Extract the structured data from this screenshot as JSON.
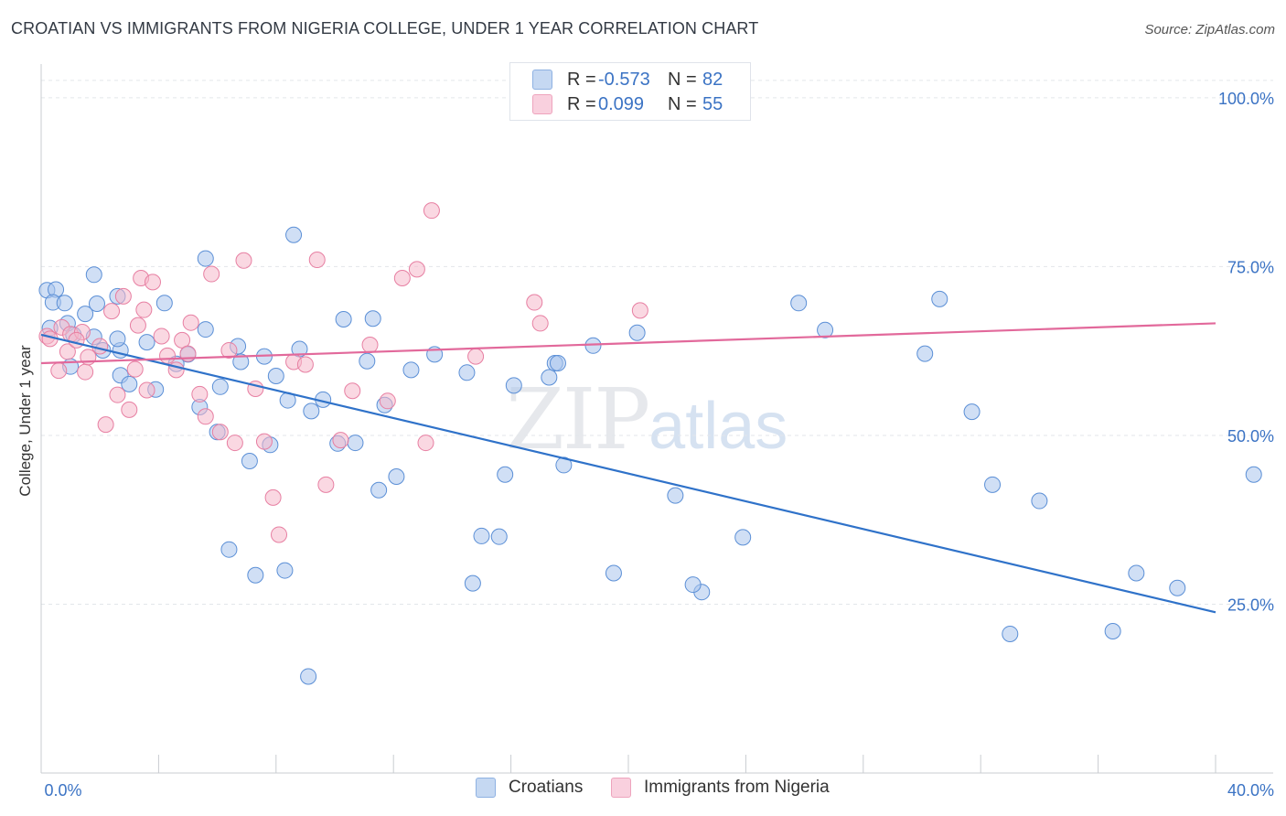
{
  "header": {
    "title": "CROATIAN VS IMMIGRANTS FROM NIGERIA COLLEGE, UNDER 1 YEAR CORRELATION CHART",
    "source": "Source: ZipAtlas.com"
  },
  "watermark": {
    "zip": "ZIP",
    "atlas": "atlas"
  },
  "legend": {
    "r_label": "R =",
    "n_label": "N =",
    "rows": [
      {
        "r": "-0.573",
        "n": "82",
        "color": "#a9c5ec"
      },
      {
        "r": "0.099",
        "n": "55",
        "color": "#f5b8cb"
      }
    ]
  },
  "bottom_legend": [
    "Croatians",
    "Immigrants from Nigeria"
  ],
  "chart_data": {
    "type": "scatter",
    "title": "CROATIAN VS IMMIGRANTS FROM NIGERIA COLLEGE, UNDER 1 YEAR CORRELATION CHART",
    "xlabel": "",
    "ylabel": "College, Under 1 year",
    "xlim": [
      0,
      40
    ],
    "ylim": [
      0,
      105
    ],
    "x_tick_labels": [
      "0.0%",
      "40.0%"
    ],
    "y_ticks": [
      25,
      50,
      75,
      100
    ],
    "y_tick_labels": [
      "25.0%",
      "50.0%",
      "75.0%",
      "100.0%"
    ],
    "grid": true,
    "legend_position": "top-center",
    "series": [
      {
        "name": "Croatians",
        "color": "#a9c5ec",
        "stroke": "#5b8fd6",
        "trend": {
          "x": [
            0,
            40
          ],
          "y": [
            64.9,
            23.8
          ],
          "color": "#2f72c9"
        },
        "points": [
          [
            0.2,
            71.5
          ],
          [
            0.5,
            71.6
          ],
          [
            0.4,
            69.7
          ],
          [
            0.8,
            69.6
          ],
          [
            0.9,
            66.6
          ],
          [
            1.1,
            64.9
          ],
          [
            1.8,
            73.8
          ],
          [
            1.9,
            69.5
          ],
          [
            1.5,
            68.0
          ],
          [
            1.8,
            64.6
          ],
          [
            2.6,
            70.6
          ],
          [
            2.7,
            62.6
          ],
          [
            2.7,
            58.9
          ],
          [
            2.6,
            64.3
          ],
          [
            3.0,
            57.6
          ],
          [
            3.6,
            63.8
          ],
          [
            3.9,
            56.8
          ],
          [
            4.2,
            69.6
          ],
          [
            4.6,
            60.6
          ],
          [
            5.0,
            62.0
          ],
          [
            5.6,
            76.2
          ],
          [
            5.6,
            65.7
          ],
          [
            5.4,
            54.2
          ],
          [
            6.1,
            57.2
          ],
          [
            6.7,
            63.2
          ],
          [
            6.0,
            50.5
          ],
          [
            6.8,
            60.9
          ],
          [
            7.1,
            46.2
          ],
          [
            7.6,
            61.7
          ],
          [
            7.8,
            48.6
          ],
          [
            8.0,
            58.8
          ],
          [
            8.6,
            79.7
          ],
          [
            8.4,
            55.2
          ],
          [
            8.8,
            62.8
          ],
          [
            9.6,
            55.3
          ],
          [
            9.2,
            53.6
          ],
          [
            10.1,
            48.8
          ],
          [
            10.3,
            67.2
          ],
          [
            10.7,
            48.9
          ],
          [
            11.3,
            67.3
          ],
          [
            11.1,
            61.0
          ],
          [
            11.5,
            41.9
          ],
          [
            11.7,
            54.5
          ],
          [
            12.1,
            43.9
          ],
          [
            13.4,
            62.0
          ],
          [
            14.5,
            59.3
          ],
          [
            15.0,
            35.1
          ],
          [
            15.6,
            35.0
          ],
          [
            15.8,
            44.2
          ],
          [
            16.1,
            57.4
          ],
          [
            17.3,
            58.6
          ],
          [
            17.5,
            60.7
          ],
          [
            17.6,
            60.7
          ],
          [
            17.8,
            45.6
          ],
          [
            12.6,
            59.7
          ],
          [
            18.8,
            63.3
          ],
          [
            19.5,
            29.6
          ],
          [
            20.3,
            65.2
          ],
          [
            21.6,
            41.1
          ],
          [
            22.5,
            26.8
          ],
          [
            22.2,
            27.9
          ],
          [
            23.9,
            34.9
          ],
          [
            25.8,
            69.6
          ],
          [
            26.7,
            65.6
          ],
          [
            30.6,
            70.2
          ],
          [
            30.1,
            62.1
          ],
          [
            31.7,
            53.5
          ],
          [
            32.4,
            42.7
          ],
          [
            34.0,
            40.3
          ],
          [
            36.5,
            21.0
          ],
          [
            33.0,
            20.6
          ],
          [
            37.3,
            29.6
          ],
          [
            38.7,
            27.4
          ],
          [
            41.3,
            44.2
          ],
          [
            8.3,
            30.0
          ],
          [
            7.3,
            29.3
          ],
          [
            6.4,
            33.1
          ],
          [
            14.7,
            28.1
          ],
          [
            9.1,
            14.3
          ],
          [
            2.1,
            62.6
          ],
          [
            0.3,
            65.9
          ],
          [
            1.0,
            60.2
          ]
        ]
      },
      {
        "name": "Immigrants from Nigeria",
        "color": "#f5b8cb",
        "stroke": "#e77fa2",
        "trend": {
          "x": [
            0,
            40
          ],
          "y": [
            60.7,
            66.6
          ],
          "color": "#e2699b"
        },
        "points": [
          [
            0.2,
            64.7
          ],
          [
            0.3,
            64.3
          ],
          [
            0.7,
            66.0
          ],
          [
            0.9,
            62.4
          ],
          [
            1.0,
            65.0
          ],
          [
            1.4,
            65.3
          ],
          [
            1.5,
            59.4
          ],
          [
            1.6,
            61.6
          ],
          [
            2.0,
            63.2
          ],
          [
            2.2,
            51.6
          ],
          [
            2.4,
            68.4
          ],
          [
            2.6,
            56.0
          ],
          [
            2.8,
            70.6
          ],
          [
            3.0,
            53.8
          ],
          [
            3.2,
            59.8
          ],
          [
            3.3,
            66.3
          ],
          [
            3.4,
            73.3
          ],
          [
            3.5,
            68.6
          ],
          [
            3.6,
            56.7
          ],
          [
            3.8,
            72.7
          ],
          [
            4.1,
            64.7
          ],
          [
            4.3,
            61.8
          ],
          [
            4.6,
            59.7
          ],
          [
            4.8,
            64.1
          ],
          [
            5.0,
            62.1
          ],
          [
            5.1,
            66.7
          ],
          [
            5.4,
            56.1
          ],
          [
            5.6,
            52.8
          ],
          [
            5.8,
            73.9
          ],
          [
            6.1,
            50.5
          ],
          [
            6.4,
            62.6
          ],
          [
            6.6,
            48.9
          ],
          [
            6.9,
            75.9
          ],
          [
            7.3,
            56.9
          ],
          [
            7.6,
            49.1
          ],
          [
            7.9,
            40.8
          ],
          [
            8.1,
            35.3
          ],
          [
            8.6,
            60.9
          ],
          [
            9.0,
            60.5
          ],
          [
            9.4,
            76.0
          ],
          [
            9.7,
            42.7
          ],
          [
            10.2,
            49.3
          ],
          [
            10.6,
            56.6
          ],
          [
            11.2,
            63.4
          ],
          [
            11.8,
            55.1
          ],
          [
            12.3,
            73.3
          ],
          [
            12.8,
            74.6
          ],
          [
            13.1,
            48.9
          ],
          [
            13.3,
            83.3
          ],
          [
            14.8,
            61.7
          ],
          [
            16.8,
            69.7
          ],
          [
            17.0,
            66.6
          ],
          [
            20.4,
            68.5
          ],
          [
            1.2,
            64.1
          ],
          [
            0.6,
            59.6
          ]
        ]
      }
    ]
  }
}
